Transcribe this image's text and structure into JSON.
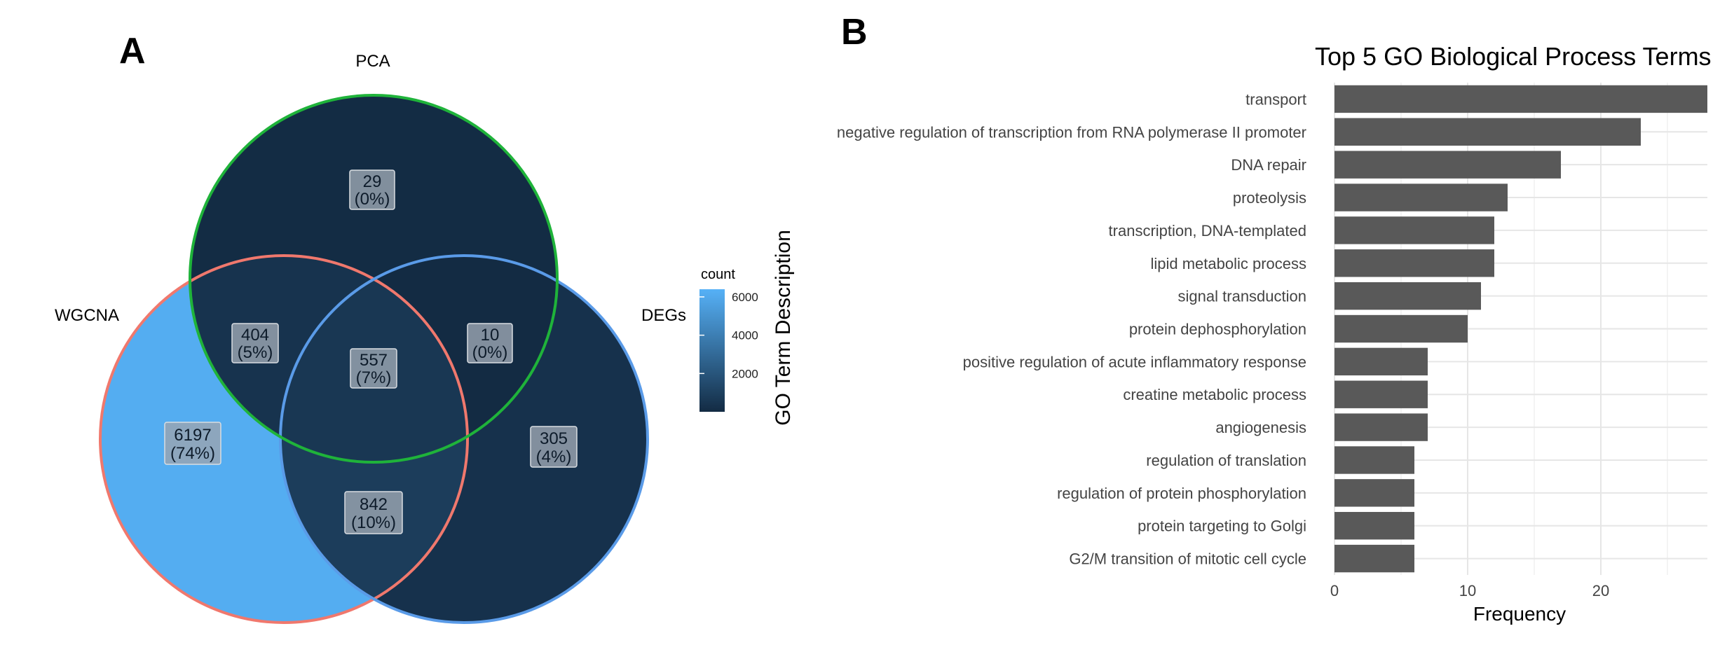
{
  "panel_a": {
    "letter": "A",
    "sets": [
      {
        "name": "PCA",
        "color": "#1fb33a"
      },
      {
        "name": "WGCNA",
        "color": "#f0786d"
      },
      {
        "name": "DEGs",
        "color": "#5a9be8"
      }
    ],
    "regions": [
      {
        "id": "pca-only",
        "count": "29",
        "pct": "(0%)"
      },
      {
        "id": "wgcna-pca",
        "count": "404",
        "pct": "(5%)"
      },
      {
        "id": "pca-degs",
        "count": "10",
        "pct": "(0%)"
      },
      {
        "id": "all-three",
        "count": "557",
        "pct": "(7%)"
      },
      {
        "id": "wgcna-only",
        "count": "6197",
        "pct": "(74%)"
      },
      {
        "id": "degs-only",
        "count": "305",
        "pct": "(4%)"
      },
      {
        "id": "wgcna-degs",
        "count": "842",
        "pct": "(10%)"
      }
    ],
    "fill_colors": {
      "low": "#132b43",
      "high": "#56b1f7"
    },
    "legend": {
      "title": "count",
      "ticks": [
        "6000",
        "4000",
        "2000"
      ],
      "range": [
        0,
        6400
      ]
    },
    "side_title": "GO Term Description"
  },
  "panel_b": {
    "letter": "B",
    "chart_data": {
      "type": "bar",
      "orientation": "horizontal",
      "title": "Top 5 GO Biological Process Terms",
      "xlabel": "Frequency",
      "ylabel": "",
      "xlim": [
        0,
        28
      ],
      "x_ticks": [
        "0",
        "10",
        "20"
      ],
      "bar_color": "#595959",
      "grid": true,
      "categories": [
        "transport",
        "negative regulation of transcription from RNA polymerase II promoter",
        "DNA repair",
        "proteolysis",
        "transcription, DNA-templated",
        "lipid metabolic process",
        "signal transduction",
        "protein dephosphorylation",
        "positive regulation of acute inflammatory response",
        "creatine metabolic process",
        "angiogenesis",
        "regulation of translation",
        "regulation of protein phosphorylation",
        "protein targeting to Golgi",
        "G2/M transition of mitotic cell cycle"
      ],
      "values": [
        28,
        23,
        17,
        13,
        12,
        12,
        11,
        10,
        7,
        7,
        7,
        6,
        6,
        6,
        6
      ]
    }
  }
}
